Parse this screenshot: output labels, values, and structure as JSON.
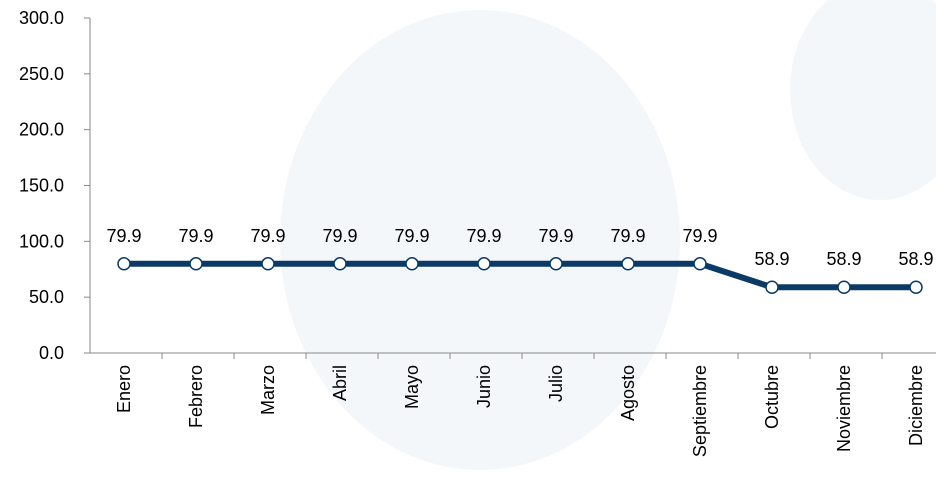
{
  "chart_data": {
    "type": "line",
    "categories": [
      "Enero",
      "Febrero",
      "Marzo",
      "Abril",
      "Mayo",
      "Junio",
      "Julio",
      "Agosto",
      "Septiembre",
      "Octubre",
      "Noviembre",
      "Diciembre"
    ],
    "values": [
      79.9,
      79.9,
      79.9,
      79.9,
      79.9,
      79.9,
      79.9,
      79.9,
      79.9,
      58.9,
      58.9,
      58.9
    ],
    "color": "#0b3a66",
    "ylim": [
      0,
      300
    ],
    "yticks": [
      {
        "value": 0,
        "label": "0.0"
      },
      {
        "value": 50,
        "label": "50.0"
      },
      {
        "value": 100,
        "label": "100.0"
      },
      {
        "value": 150,
        "label": "150.0"
      },
      {
        "value": 200,
        "label": "200.0"
      },
      {
        "value": 250,
        "label": "250.0"
      },
      {
        "value": 300,
        "label": "300.0"
      }
    ],
    "grid": false
  }
}
